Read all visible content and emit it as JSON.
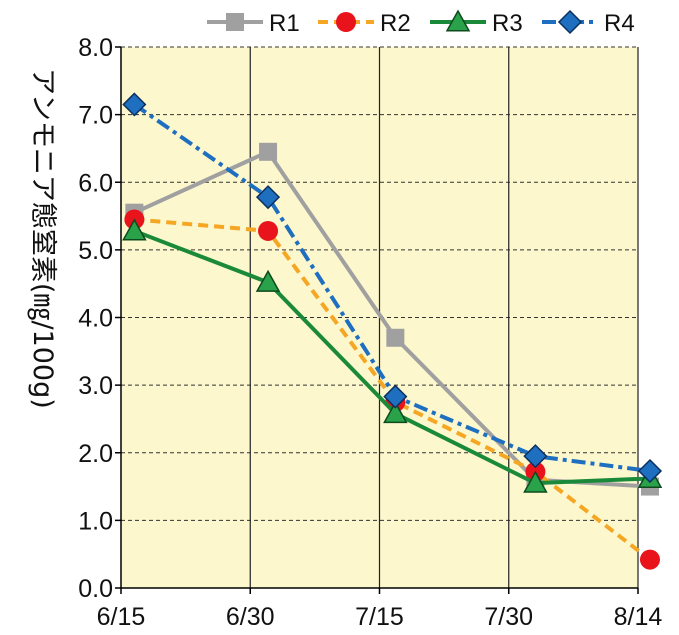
{
  "chart_data": {
    "type": "line",
    "x": [
      "6/15",
      "6/30",
      "7/15",
      "7/30",
      "8/14"
    ],
    "ylabel": "アンモニア態窒素(㎎/100g)",
    "ylim": [
      0,
      8
    ],
    "yticks": [
      "0.0",
      "1.0",
      "2.0",
      "3.0",
      "4.0",
      "5.0",
      "6.0",
      "7.0",
      "8.0"
    ],
    "grid": true,
    "legend_position": "top",
    "plot_background": "#fcf7cc",
    "series": [
      {
        "name": "R1",
        "color": "#a0a0a0",
        "marker": "square",
        "dash": "solid",
        "x": [
          0.05,
          1.1,
          2.1,
          3.2,
          4.1
        ],
        "values": [
          5.55,
          6.45,
          3.7,
          1.6,
          1.5
        ]
      },
      {
        "name": "R2",
        "color": "#f5a623",
        "marker": "circle",
        "dash": "dashed",
        "x": [
          0.05,
          1.1,
          2.1,
          3.2,
          4.1
        ],
        "values": [
          5.45,
          5.28,
          2.75,
          1.72,
          0.42
        ]
      },
      {
        "name": "R3",
        "color": "#1a8a3a",
        "marker": "triangle",
        "dash": "solid",
        "x": [
          0.05,
          1.1,
          2.1,
          3.2,
          4.1
        ],
        "values": [
          5.28,
          4.52,
          2.58,
          1.55,
          1.62
        ]
      },
      {
        "name": "R4",
        "color": "#1f6fc0",
        "marker": "diamond",
        "dash": "dashdot",
        "x": [
          0.05,
          1.1,
          2.1,
          3.2,
          4.1
        ],
        "values": [
          7.15,
          5.78,
          2.83,
          1.95,
          1.73
        ]
      }
    ]
  }
}
